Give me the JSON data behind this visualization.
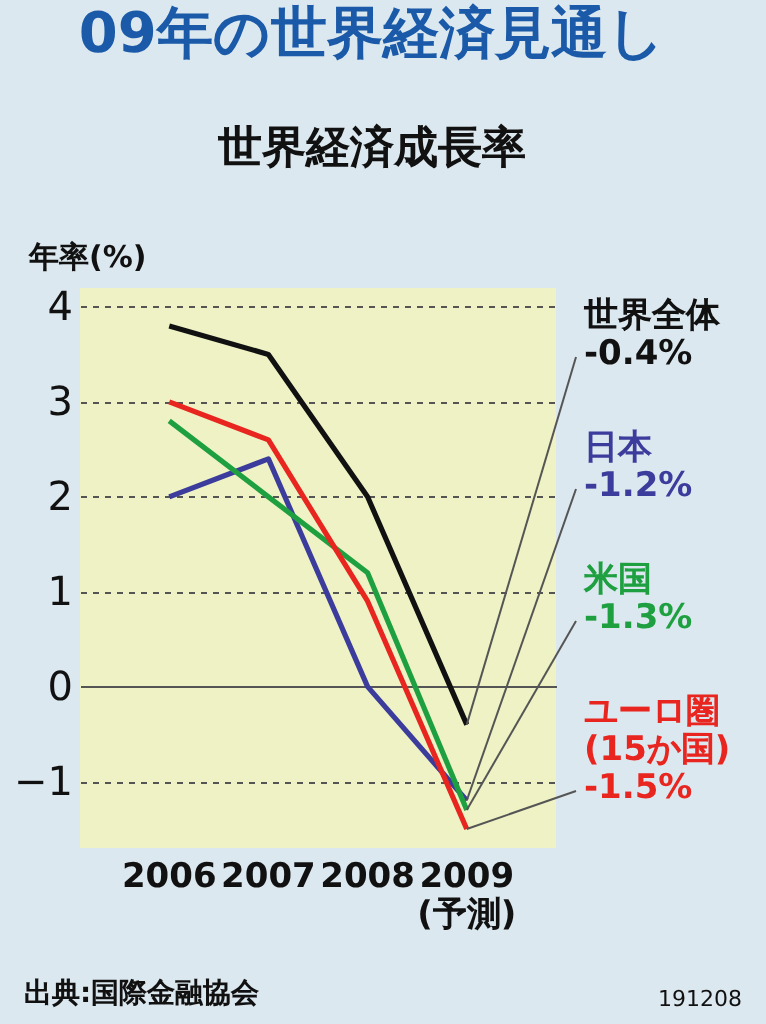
{
  "chart_data": {
    "type": "line",
    "title": "09年の世界経済見通し",
    "subtitle": "世界経済成長率",
    "ylabel": "年率(%)",
    "categories": [
      "2006",
      "2007",
      "2008",
      "2009(予測)"
    ],
    "series": [
      {
        "name": "世界全体",
        "color": "#111111",
        "values": [
          3.8,
          3.5,
          2.0,
          -0.4
        ],
        "value_labels": [
          null,
          null,
          null,
          "-0.4%"
        ]
      },
      {
        "name": "日本",
        "color": "#3c3c9c",
        "values": [
          2.0,
          2.4,
          0.0,
          -1.2
        ],
        "value_labels": [
          null,
          null,
          null,
          "-1.2%"
        ]
      },
      {
        "name": "米国",
        "color": "#1fa040",
        "values": [
          2.8,
          2.0,
          1.2,
          -1.3
        ],
        "value_labels": [
          null,
          null,
          null,
          "-1.3%"
        ]
      },
      {
        "name": "ユーロ圏(15か国)",
        "color": "#e8251f",
        "values": [
          3.0,
          2.6,
          0.9,
          -1.5
        ],
        "value_labels": [
          null,
          null,
          null,
          "-1.5%"
        ]
      }
    ],
    "ylim": [
      -1.7,
      4.2
    ],
    "yticks": [
      -1,
      0,
      1,
      2,
      3,
      4
    ],
    "grid": "y",
    "marker": "none",
    "line_style": "solid",
    "annotations": [
      "出典:国際金融協会",
      "191208"
    ]
  }
}
